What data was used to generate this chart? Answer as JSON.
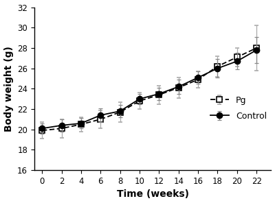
{
  "time_weeks": [
    0,
    2,
    4,
    6,
    8,
    10,
    12,
    14,
    16,
    18,
    20,
    22
  ],
  "control_mean": [
    20.1,
    20.4,
    20.6,
    21.4,
    21.8,
    23.0,
    23.5,
    24.2,
    25.1,
    26.0,
    26.7,
    27.8
  ],
  "control_err": [
    0.5,
    0.6,
    0.5,
    0.7,
    0.6,
    0.5,
    0.6,
    0.7,
    0.6,
    0.9,
    0.8,
    1.3
  ],
  "pg_mean": [
    19.9,
    20.1,
    20.5,
    21.0,
    21.7,
    22.8,
    23.4,
    24.1,
    24.9,
    26.2,
    27.1,
    28.0
  ],
  "pg_err": [
    0.8,
    0.9,
    0.7,
    0.9,
    1.0,
    0.8,
    0.9,
    1.0,
    0.8,
    1.0,
    0.9,
    2.2
  ],
  "xlabel": "Time (weeks)",
  "ylabel": "Body weight (g)",
  "xlim": [
    -0.8,
    23.5
  ],
  "ylim": [
    16,
    32
  ],
  "yticks": [
    16,
    18,
    20,
    22,
    24,
    26,
    28,
    30,
    32
  ],
  "xticks": [
    0,
    2,
    4,
    6,
    8,
    10,
    12,
    14,
    16,
    18,
    20,
    22
  ],
  "control_color": "#000000",
  "pg_color": "#000000",
  "pg_err_color": "#aaaaaa",
  "legend_labels": [
    "Control",
    "Pg"
  ],
  "background_color": "#ffffff",
  "figsize": [
    4.0,
    2.96
  ],
  "dpi": 100
}
